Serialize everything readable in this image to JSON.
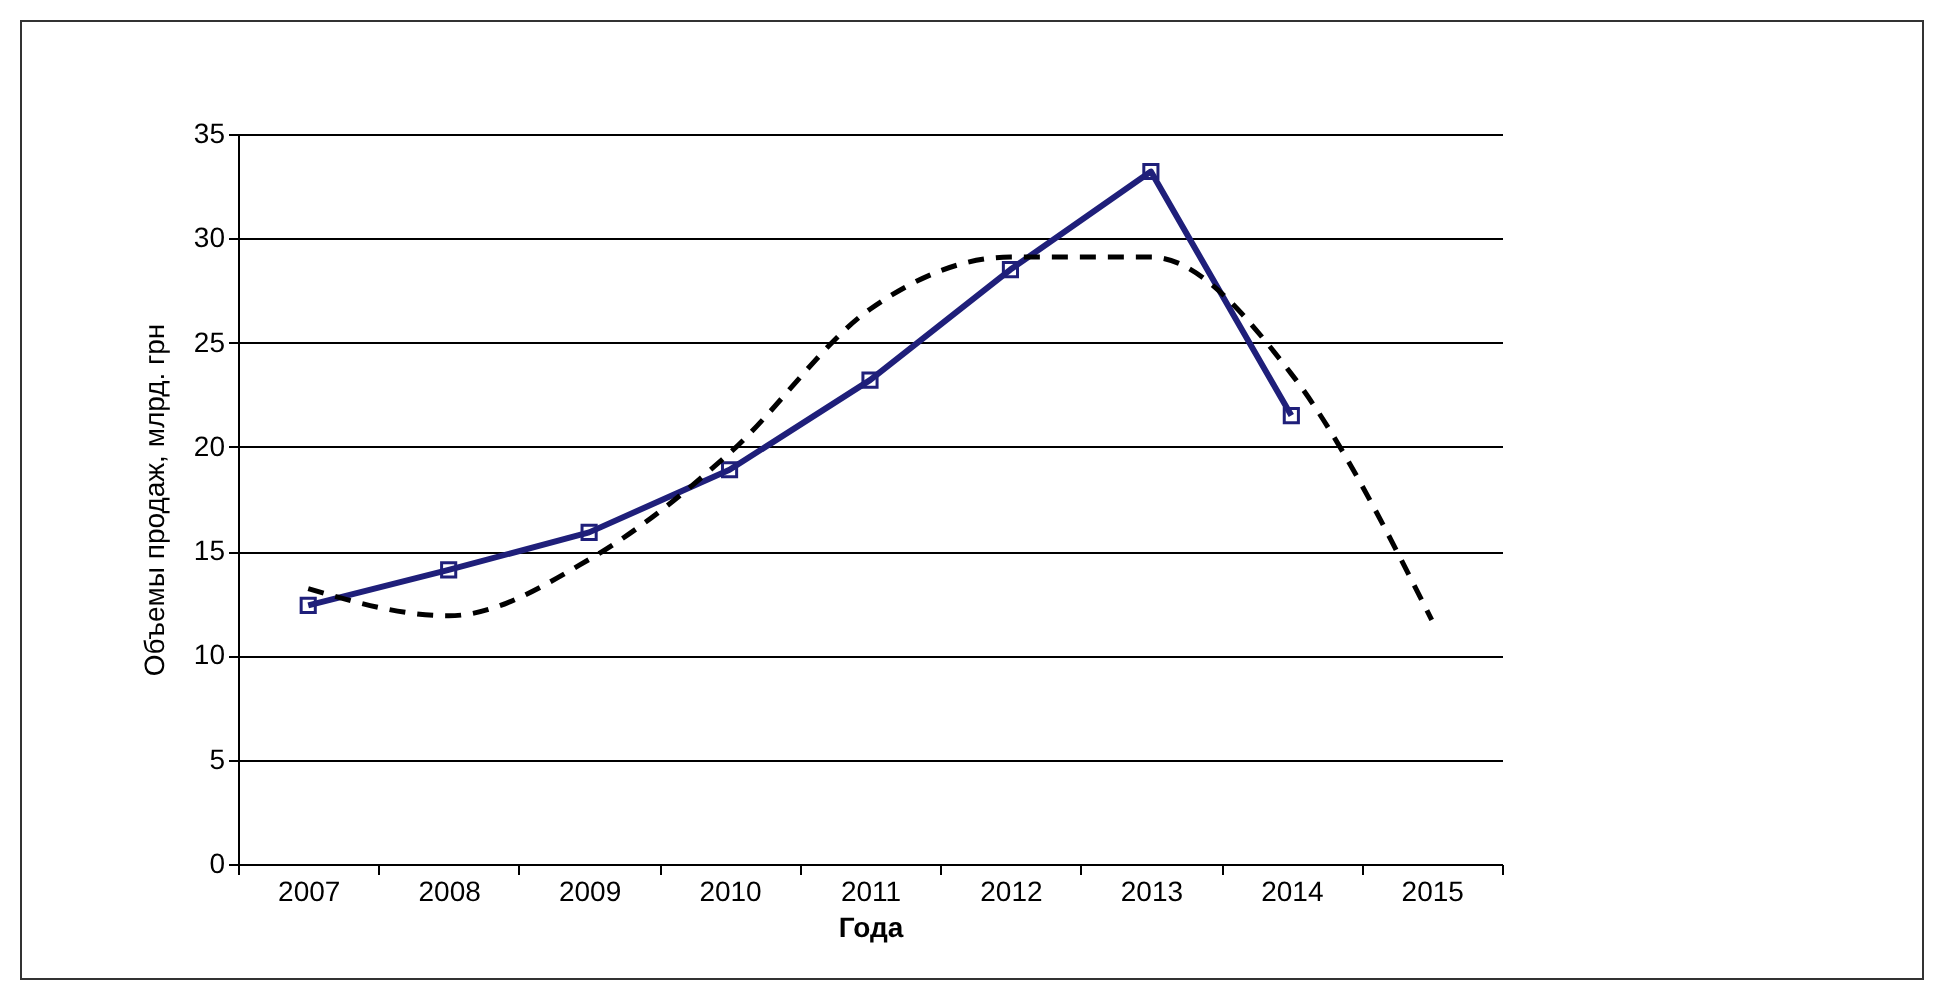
{
  "chart_data": {
    "type": "line",
    "xlabel": "Года",
    "ylabel": "Объемы продаж, млрд. грн",
    "categories": [
      "2007",
      "2008",
      "2009",
      "2010",
      "2011",
      "2012",
      "2013",
      "2014",
      "2015"
    ],
    "series": [
      {
        "color": "#1f1f7a",
        "marker": "square",
        "line_style": "solid",
        "values": [
          12.4,
          14.1,
          15.9,
          18.9,
          23.2,
          28.5,
          33.2,
          21.5,
          null
        ]
      },
      {
        "type": "line",
        "color": "#000000",
        "marker": "none",
        "line_style": "dashed",
        "values": [
          13.2,
          11.9,
          14.6,
          19.7,
          26.6,
          29.1,
          29.1,
          23.5,
          11.7
        ]
      }
    ],
    "ylim": [
      0,
      35
    ],
    "yticks": [
      0,
      5,
      10,
      15,
      20,
      25,
      30,
      35
    ],
    "grid": "y"
  }
}
